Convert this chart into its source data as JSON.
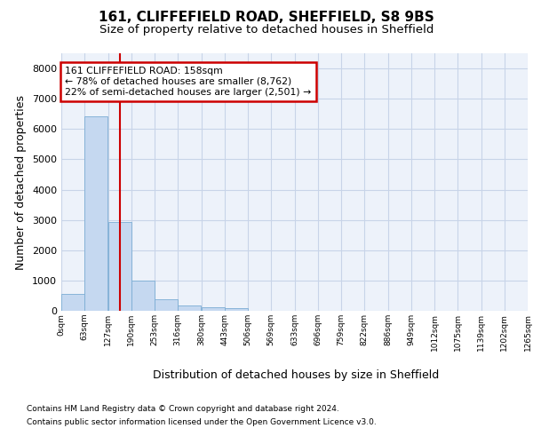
{
  "title_line1": "161, CLIFFEFIELD ROAD, SHEFFIELD, S8 9BS",
  "title_line2": "Size of property relative to detached houses in Sheffield",
  "xlabel": "Distribution of detached houses by size in Sheffield",
  "ylabel": "Number of detached properties",
  "footnote1": "Contains HM Land Registry data © Crown copyright and database right 2024.",
  "footnote2": "Contains public sector information licensed under the Open Government Licence v3.0.",
  "bin_edges": [
    0,
    63,
    127,
    190,
    253,
    316,
    380,
    443,
    506,
    569,
    633,
    696,
    759,
    822,
    886,
    949,
    1012,
    1075,
    1139,
    1202,
    1265
  ],
  "bar_heights": [
    570,
    6420,
    2920,
    1000,
    380,
    175,
    120,
    85,
    0,
    0,
    0,
    0,
    0,
    0,
    0,
    0,
    0,
    0,
    0,
    0
  ],
  "bar_color": "#c5d8f0",
  "bar_edge_color": "#7badd4",
  "grid_color": "#c8d4e8",
  "property_size": 158,
  "vline_color": "#cc0000",
  "annotation_text": "161 CLIFFEFIELD ROAD: 158sqm\n← 78% of detached houses are smaller (8,762)\n22% of semi-detached houses are larger (2,501) →",
  "annotation_box_color": "#cc0000",
  "ylim": [
    0,
    8500
  ],
  "yticks": [
    0,
    1000,
    2000,
    3000,
    4000,
    5000,
    6000,
    7000,
    8000
  ],
  "background_color": "#edf2fa",
  "title_fontsize": 11,
  "subtitle_fontsize": 9.5,
  "axis_fontsize": 9
}
